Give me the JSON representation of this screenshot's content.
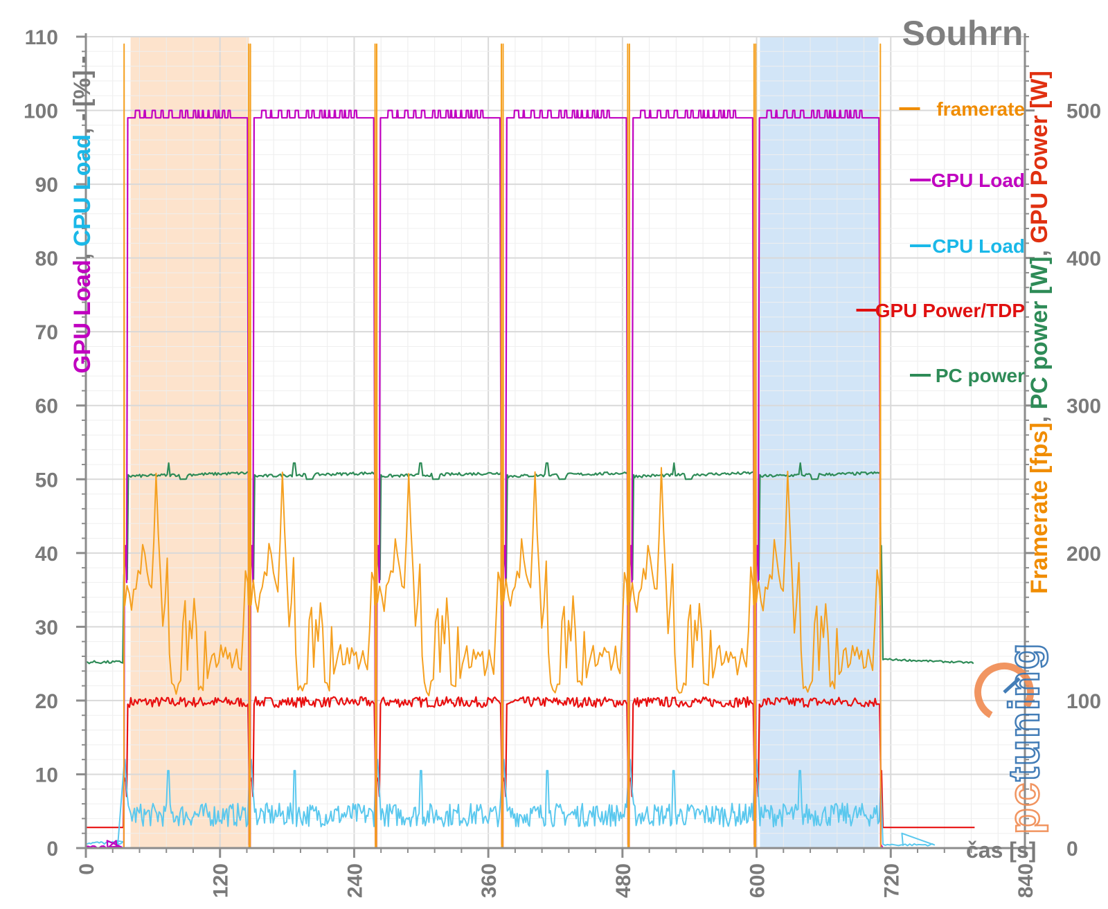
{
  "chart_data": {
    "type": "line",
    "title": "Souhrn",
    "xlabel": "čas [s]",
    "xlim": [
      0,
      840
    ],
    "ylim_left": [
      0,
      110
    ],
    "ylim_right": [
      0,
      550
    ],
    "x_ticks": [
      "0",
      "120",
      "240",
      "360",
      "480",
      "600",
      "720",
      "840"
    ],
    "y_ticks_left": [
      "0",
      "10",
      "20",
      "30",
      "40",
      "50",
      "60",
      "70",
      "80",
      "90",
      "100",
      "110"
    ],
    "y_ticks_right": [
      "0",
      "100",
      "200",
      "300",
      "400",
      "500"
    ],
    "ylabel_left": [
      {
        "text": "GPU Load",
        "color": "#c000c0"
      },
      {
        "text": ", ",
        "color": "#7a7a7a"
      },
      {
        "text": "CPU Load",
        "color": "#1ab8e8"
      },
      {
        "text": ", - [%] -",
        "color": "#7a7a7a"
      }
    ],
    "ylabel_right": [
      {
        "text": "Framerate [fps]",
        "color": "#f08c00"
      },
      {
        "text": ", ",
        "color": "#7a7a7a"
      },
      {
        "text": "PC power [W]",
        "color": "#2e8b57"
      },
      {
        "text": ", ",
        "color": "#7a7a7a"
      },
      {
        "text": "GPU Power [W]",
        "color": "#e03010"
      }
    ],
    "highlights": [
      {
        "x0": 40,
        "x1": 146,
        "color": "#fde3cc"
      },
      {
        "x0": 603,
        "x1": 709,
        "color": "#d2e5f7"
      }
    ],
    "runs": [
      {
        "start": 34,
        "end": 146
      },
      {
        "start": 147,
        "end": 259
      },
      {
        "start": 260,
        "end": 372
      },
      {
        "start": 373,
        "end": 485
      },
      {
        "start": 486,
        "end": 598
      },
      {
        "start": 599,
        "end": 711
      }
    ],
    "series": [
      {
        "name": "framerate",
        "axis": "right",
        "color": "#f5a020",
        "run_profile": [
          [
            0,
            165
          ],
          [
            2,
            180
          ],
          [
            4,
            170
          ],
          [
            6,
            162
          ],
          [
            8,
            175
          ],
          [
            10,
            178
          ],
          [
            12,
            188
          ],
          [
            14,
            185
          ],
          [
            16,
            208
          ],
          [
            18,
            198
          ],
          [
            20,
            188
          ],
          [
            22,
            178
          ],
          [
            24,
            175
          ],
          [
            26,
            210
          ],
          [
            28,
            255
          ],
          [
            30,
            215
          ],
          [
            32,
            185
          ],
          [
            34,
            148
          ],
          [
            36,
            165
          ],
          [
            38,
            195
          ],
          [
            40,
            132
          ],
          [
            42,
            110
          ],
          [
            44,
            108
          ],
          [
            46,
            105
          ],
          [
            48,
            112
          ],
          [
            50,
            112
          ],
          [
            52,
            155
          ],
          [
            54,
            165
          ],
          [
            56,
            120
          ],
          [
            58,
            155
          ],
          [
            60,
            140
          ],
          [
            62,
            168
          ],
          [
            64,
            148
          ],
          [
            66,
            110
          ],
          [
            68,
            112
          ],
          [
            70,
            108
          ],
          [
            72,
            148
          ],
          [
            74,
            118
          ],
          [
            76,
            122
          ],
          [
            78,
            132
          ],
          [
            80,
            135
          ],
          [
            82,
            122
          ],
          [
            84,
            125
          ],
          [
            86,
            135
          ],
          [
            88,
            128
          ],
          [
            90,
            135
          ],
          [
            92,
            130
          ],
          [
            94,
            132
          ],
          [
            96,
            120
          ],
          [
            98,
            125
          ],
          [
            100,
            135
          ],
          [
            102,
            125
          ],
          [
            104,
            120
          ],
          [
            106,
            150
          ],
          [
            108,
            188
          ],
          [
            110,
            180
          ],
          [
            112,
            150
          ]
        ]
      },
      {
        "name": "GPU Load",
        "axis": "left",
        "color": "#c000c0",
        "idle": 0,
        "plateau": 99,
        "pattern_peak": 100
      },
      {
        "name": "CPU Load",
        "axis": "left",
        "color": "#5ac8ee",
        "idle": 0.5,
        "avg": 4.5,
        "spike_peak": 10.5
      },
      {
        "name": "GPU Power/TDP",
        "axis": "left",
        "color": "#e81010",
        "idle": 2.8,
        "avg": 19.8,
        "spike_peak": 10
      },
      {
        "name": "PC power",
        "axis": "right",
        "color": "#2e8b57",
        "idle_before": 126,
        "idle_after": 128,
        "avg": 253,
        "spike_peak": 261
      }
    ],
    "legend": {
      "placement": "right",
      "entries": [
        {
          "label": "framerate",
          "color": "#f08c00"
        },
        {
          "label": "GPU Load",
          "color": "#c000c0"
        },
        {
          "label": "CPU Load",
          "color": "#1ab8e8"
        },
        {
          "label": "GPU Power/TDP",
          "color": "#e01010"
        },
        {
          "label": "PC power",
          "color": "#2e8b57"
        }
      ]
    },
    "watermark": "pctuning"
  }
}
